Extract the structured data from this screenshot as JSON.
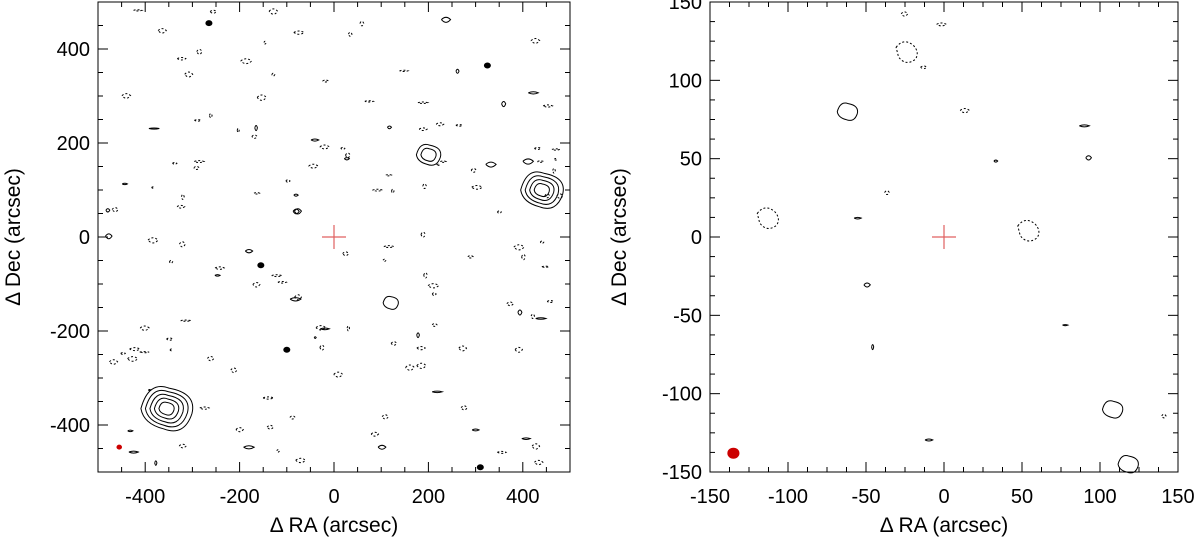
{
  "chart_data": [
    {
      "type": "contour",
      "xlabel": "Δ RA (arcsec)",
      "ylabel": "Δ Dec (arcsec)",
      "xlim": [
        -500,
        500
      ],
      "ylim": [
        -500,
        500
      ],
      "x_ticks": [
        -400,
        -200,
        0,
        200,
        400
      ],
      "y_ticks": [
        -400,
        -200,
        0,
        200,
        400
      ],
      "center_marker": {
        "x": 0,
        "y": 0,
        "color": "#e06060"
      },
      "beam": {
        "x": -455,
        "y": -447,
        "color": "#cc0000"
      },
      "features": [
        {
          "kind": "solid",
          "x": -355,
          "y": -365,
          "levels": 5
        },
        {
          "kind": "solid",
          "x": 440,
          "y": 100,
          "levels": 4
        },
        {
          "kind": "filled",
          "x": -265,
          "y": 455
        },
        {
          "kind": "filled",
          "x": 325,
          "y": 365
        },
        {
          "kind": "filled",
          "x": -100,
          "y": -240
        },
        {
          "kind": "filled",
          "x": -155,
          "y": -60
        },
        {
          "kind": "filled",
          "x": 310,
          "y": -490
        },
        {
          "kind": "solid",
          "x": 120,
          "y": -140,
          "levels": 1
        },
        {
          "kind": "solid",
          "x": 200,
          "y": 175,
          "levels": 2
        }
      ]
    },
    {
      "type": "contour",
      "xlabel": "Δ RA (arcsec)",
      "ylabel": "Δ Dec (arcsec)",
      "xlim": [
        -150,
        150
      ],
      "ylim": [
        -150,
        150
      ],
      "x_ticks": [
        -150,
        -100,
        -50,
        0,
        50,
        100,
        150
      ],
      "y_ticks": [
        -150,
        -100,
        -50,
        0,
        50,
        100,
        150
      ],
      "center_marker": {
        "x": 0,
        "y": 0,
        "color": "#e06060"
      },
      "beam": {
        "x": -135,
        "y": -138,
        "color": "#cc0000"
      },
      "features": [
        {
          "kind": "solid",
          "x": -62,
          "y": 80,
          "levels": 1
        },
        {
          "kind": "solid",
          "x": 118,
          "y": -145,
          "levels": 1
        },
        {
          "kind": "solid",
          "x": 108,
          "y": -110,
          "levels": 1
        },
        {
          "kind": "dashed",
          "x": -112,
          "y": 12
        },
        {
          "kind": "dashed",
          "x": 55,
          "y": 4
        },
        {
          "kind": "dashed",
          "x": -23,
          "y": 118
        }
      ]
    }
  ]
}
